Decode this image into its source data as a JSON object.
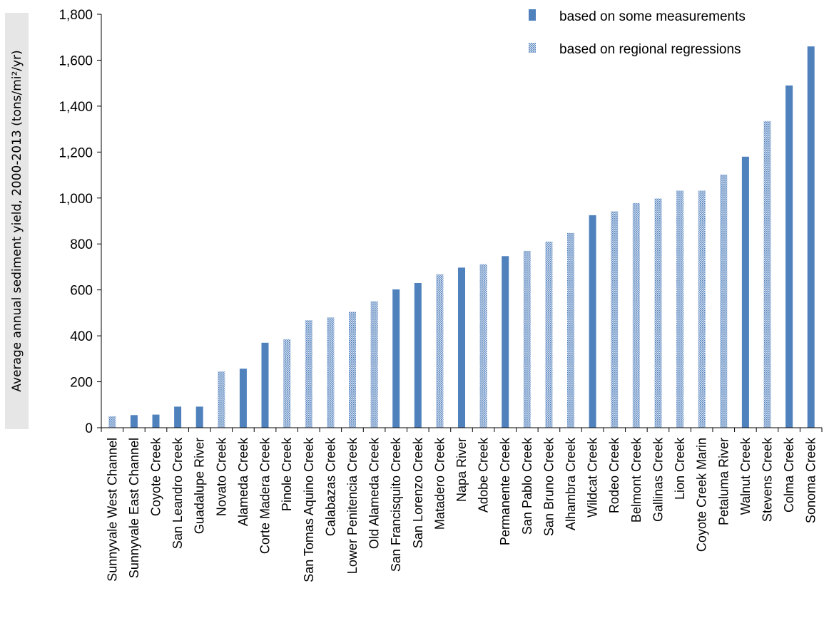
{
  "chart_data": {
    "type": "bar",
    "title": "",
    "xlabel": "",
    "ylabel": "Average annual sediment yield, 2000-2013 (tons/mi²/yr)",
    "ylim": [
      0,
      1800
    ],
    "y_ticks": [
      "0",
      "200",
      "400",
      "600",
      "800",
      "1,000",
      "1,200",
      "1,400",
      "1,600",
      "1,800"
    ],
    "grid": false,
    "legend_position": "top-right",
    "series": [
      {
        "name": "based on some measurements",
        "style": "solid",
        "color": "#4f81bd"
      },
      {
        "name": "based on regional regressions",
        "style": "dotted",
        "color": "#4f81bd"
      }
    ],
    "categories": [
      "Sunnyvale West Channel",
      "Sunnyvale East Channel",
      "Coyote Creek",
      "San Leandro Creek",
      "Guadalupe River",
      "Novato Creek",
      "Alameda Creek",
      "Corte Madera Creek",
      "Pinole Creek",
      "San Tomas Aquino Creek",
      "Calabazas Creek",
      "Lower Penitencia Creek",
      "Old Alameda Creek",
      "San Francisquito Creek",
      "San Lorenzo Creek",
      "Matadero Creek",
      "Napa River",
      "Adobe Creek",
      "Permanente Creek",
      "San Pablo Creek",
      "San Bruno Creek",
      "Alhambra Creek",
      "Wildcat Creek",
      "Rodeo Creek",
      "Belmont Creek",
      "Gallinas Creek",
      "Lion Creek",
      "Coyote Creek Marin",
      "Petaluma River",
      "Walnut Creek",
      "Stevens Creek",
      "Colma Creek",
      "Sonoma Creek"
    ],
    "values": [
      50,
      55,
      57,
      92,
      92,
      245,
      257,
      370,
      385,
      468,
      480,
      505,
      550,
      602,
      630,
      668,
      697,
      712,
      747,
      770,
      810,
      848,
      925,
      942,
      978,
      998,
      1032,
      1032,
      1102,
      1180,
      1335,
      1490,
      1660
    ],
    "series_index": [
      1,
      0,
      0,
      0,
      0,
      1,
      0,
      0,
      1,
      1,
      1,
      1,
      1,
      0,
      0,
      1,
      0,
      1,
      0,
      1,
      1,
      1,
      0,
      1,
      1,
      1,
      1,
      1,
      1,
      0,
      1,
      0,
      0
    ]
  }
}
